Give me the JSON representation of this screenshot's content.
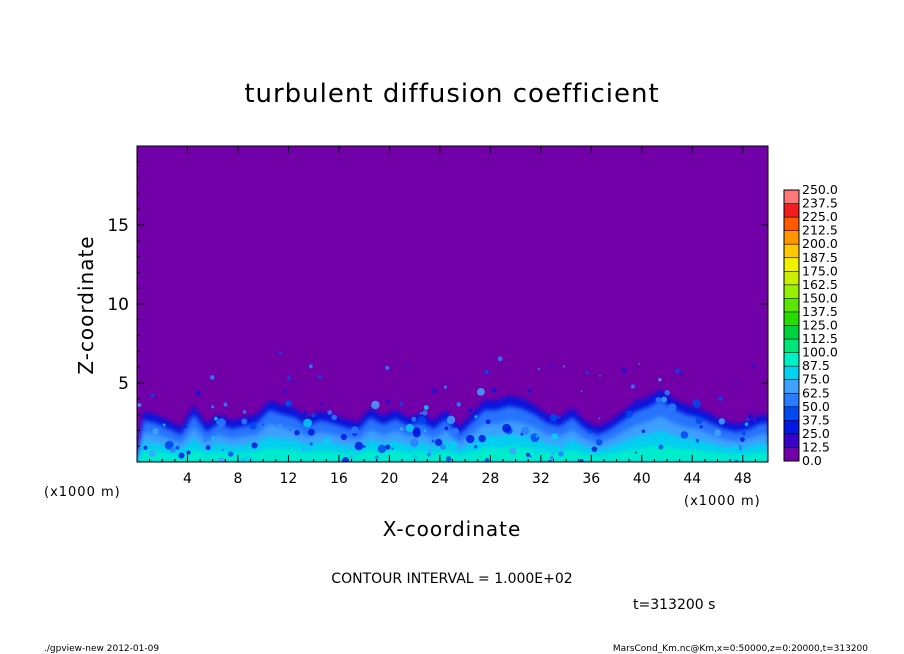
{
  "chart_data": {
    "type": "heatmap",
    "title": "turbulent diffusion coefficient",
    "xlabel": "X-coordinate",
    "ylabel": "Z-coordinate",
    "x_unit": "(x1000 m)",
    "y_unit": "(x1000 m)",
    "xlim": [
      0,
      50
    ],
    "ylim": [
      0,
      20
    ],
    "x_ticks": [
      "4",
      "8",
      "12",
      "16",
      "20",
      "24",
      "28",
      "32",
      "36",
      "40",
      "44",
      "48"
    ],
    "y_ticks": [
      "5",
      "10",
      "15"
    ],
    "x_tick_values": [
      4,
      8,
      12,
      16,
      20,
      24,
      28,
      32,
      36,
      40,
      44,
      48
    ],
    "y_tick_values": [
      5,
      10,
      15
    ],
    "colorbar": {
      "levels": [
        "0.0",
        "12.5",
        "25.0",
        "37.5",
        "50.0",
        "62.5",
        "75.0",
        "87.5",
        "100.0",
        "112.5",
        "125.0",
        "137.5",
        "150.0",
        "162.5",
        "175.0",
        "187.5",
        "200.0",
        "212.5",
        "225.0",
        "237.5",
        "250.0"
      ],
      "colors": [
        "#7200a8",
        "#3a00c8",
        "#0018e0",
        "#0048f0",
        "#2a7cff",
        "#3fa2ff",
        "#00d2f0",
        "#00f0c8",
        "#00e67a",
        "#00d23c",
        "#28dc00",
        "#5ae600",
        "#96f000",
        "#c8f000",
        "#f0f000",
        "#ffc800",
        "#ff9600",
        "#ff5a00",
        "#f01e1e",
        "#ff7878"
      ]
    },
    "background_value": 0.0,
    "turbulent_layer_top": [
      3.2,
      3.0,
      2.6,
      2.2,
      3.6,
      2.4,
      3.0,
      2.6,
      2.8,
      3.0,
      3.9,
      3.6,
      3.4,
      2.8,
      3.2,
      3.0,
      2.7,
      2.5,
      3.4,
      2.9,
      3.3,
      2.8,
      3.1,
      2.6,
      3.3,
      2.2,
      3.0,
      3.9,
      3.9,
      4.2,
      4.0,
      3.6,
      3.0,
      2.8,
      3.4,
      2.6,
      2.2,
      2.6,
      3.2,
      3.8,
      4.1,
      4.6,
      4.0,
      3.6,
      3.4,
      3.0,
      2.6,
      2.4,
      2.6,
      3.0
    ]
  },
  "contour_interval": "CONTOUR INTERVAL = 1.000E+02",
  "time_label": "t=313200 s",
  "footer_left": "./gpview-new  2012-01-09",
  "footer_right": "MarsCond_Km.nc@Km,x=0:50000,z=0:20000,t=313200"
}
